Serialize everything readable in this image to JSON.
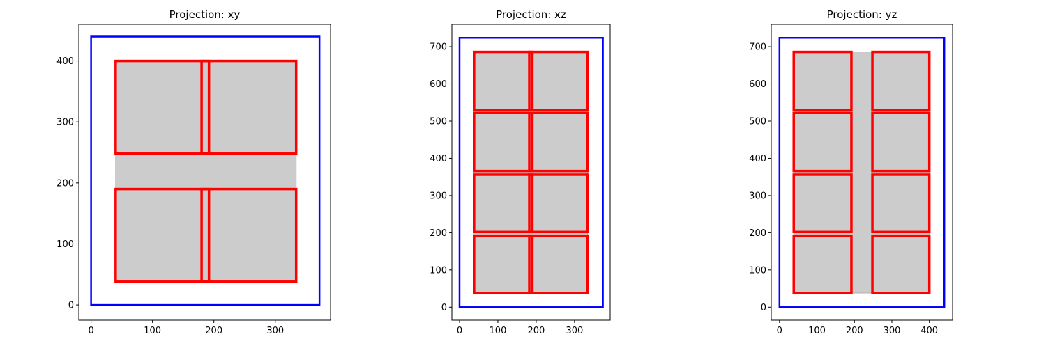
{
  "chart_data": [
    {
      "type": "rectangles",
      "title": "Projection: xy",
      "xlabel": "",
      "ylabel": "",
      "xlim": [
        -20,
        390
      ],
      "ylim": [
        -25,
        460
      ],
      "xticks": [
        0,
        100,
        200,
        300
      ],
      "yticks": [
        0,
        100,
        200,
        300,
        400
      ],
      "grid": false,
      "container": {
        "x0": 0,
        "y0": 0,
        "x1": 372,
        "y1": 440,
        "color": "#0000ff"
      },
      "filled_regions": [
        {
          "x0": 40,
          "y0": 38,
          "x1": 334,
          "y1": 400,
          "color": "#cccccc"
        }
      ],
      "boxes": [
        {
          "x0": 40,
          "y0": 38,
          "x1": 192,
          "y1": 190
        },
        {
          "x0": 180,
          "y0": 38,
          "x1": 334,
          "y1": 190
        },
        {
          "x0": 40,
          "y0": 248,
          "x1": 192,
          "y1": 400
        },
        {
          "x0": 180,
          "y0": 248,
          "x1": 334,
          "y1": 400
        }
      ],
      "box_color": "#ff0000"
    },
    {
      "type": "rectangles",
      "title": "Projection: xz",
      "xlabel": "",
      "ylabel": "",
      "xlim": [
        -20,
        393
      ],
      "ylim": [
        -35,
        760
      ],
      "xticks": [
        0,
        100,
        200,
        300
      ],
      "yticks": [
        0,
        100,
        200,
        300,
        400,
        500,
        600,
        700
      ],
      "grid": false,
      "container": {
        "x0": 0,
        "y0": 0,
        "x1": 374,
        "y1": 724,
        "color": "#0000ff"
      },
      "filled_regions": [
        {
          "x0": 38,
          "y0": 38,
          "x1": 334,
          "y1": 686,
          "color": "#cccccc"
        }
      ],
      "boxes": [
        {
          "x0": 38,
          "y0": 38,
          "x1": 190,
          "y1": 192
        },
        {
          "x0": 182,
          "y0": 38,
          "x1": 334,
          "y1": 192
        },
        {
          "x0": 38,
          "y0": 202,
          "x1": 190,
          "y1": 356
        },
        {
          "x0": 182,
          "y0": 202,
          "x1": 334,
          "y1": 356
        },
        {
          "x0": 38,
          "y0": 366,
          "x1": 190,
          "y1": 522
        },
        {
          "x0": 182,
          "y0": 366,
          "x1": 334,
          "y1": 522
        },
        {
          "x0": 38,
          "y0": 530,
          "x1": 190,
          "y1": 686
        },
        {
          "x0": 182,
          "y0": 530,
          "x1": 334,
          "y1": 686
        }
      ],
      "box_color": "#ff0000"
    },
    {
      "type": "rectangles",
      "title": "Projection: yz",
      "xlabel": "",
      "ylabel": "",
      "xlim": [
        -22,
        462
      ],
      "ylim": [
        -35,
        760
      ],
      "xticks": [
        0,
        100,
        200,
        300,
        400
      ],
      "yticks": [
        0,
        100,
        200,
        300,
        400,
        500,
        600,
        700
      ],
      "grid": false,
      "container": {
        "x0": 0,
        "y0": 0,
        "x1": 440,
        "y1": 724,
        "color": "#0000ff"
      },
      "filled_regions": [
        {
          "x0": 38,
          "y0": 38,
          "x1": 400,
          "y1": 686,
          "color": "#cccccc"
        }
      ],
      "boxes": [
        {
          "x0": 38,
          "y0": 38,
          "x1": 192,
          "y1": 192
        },
        {
          "x0": 248,
          "y0": 38,
          "x1": 400,
          "y1": 192
        },
        {
          "x0": 38,
          "y0": 202,
          "x1": 192,
          "y1": 356
        },
        {
          "x0": 248,
          "y0": 202,
          "x1": 400,
          "y1": 356
        },
        {
          "x0": 38,
          "y0": 366,
          "x1": 192,
          "y1": 522
        },
        {
          "x0": 248,
          "y0": 366,
          "x1": 400,
          "y1": 522
        },
        {
          "x0": 38,
          "y0": 530,
          "x1": 192,
          "y1": 686
        },
        {
          "x0": 248,
          "y0": 530,
          "x1": 400,
          "y1": 686
        }
      ],
      "box_color": "#ff0000"
    }
  ]
}
